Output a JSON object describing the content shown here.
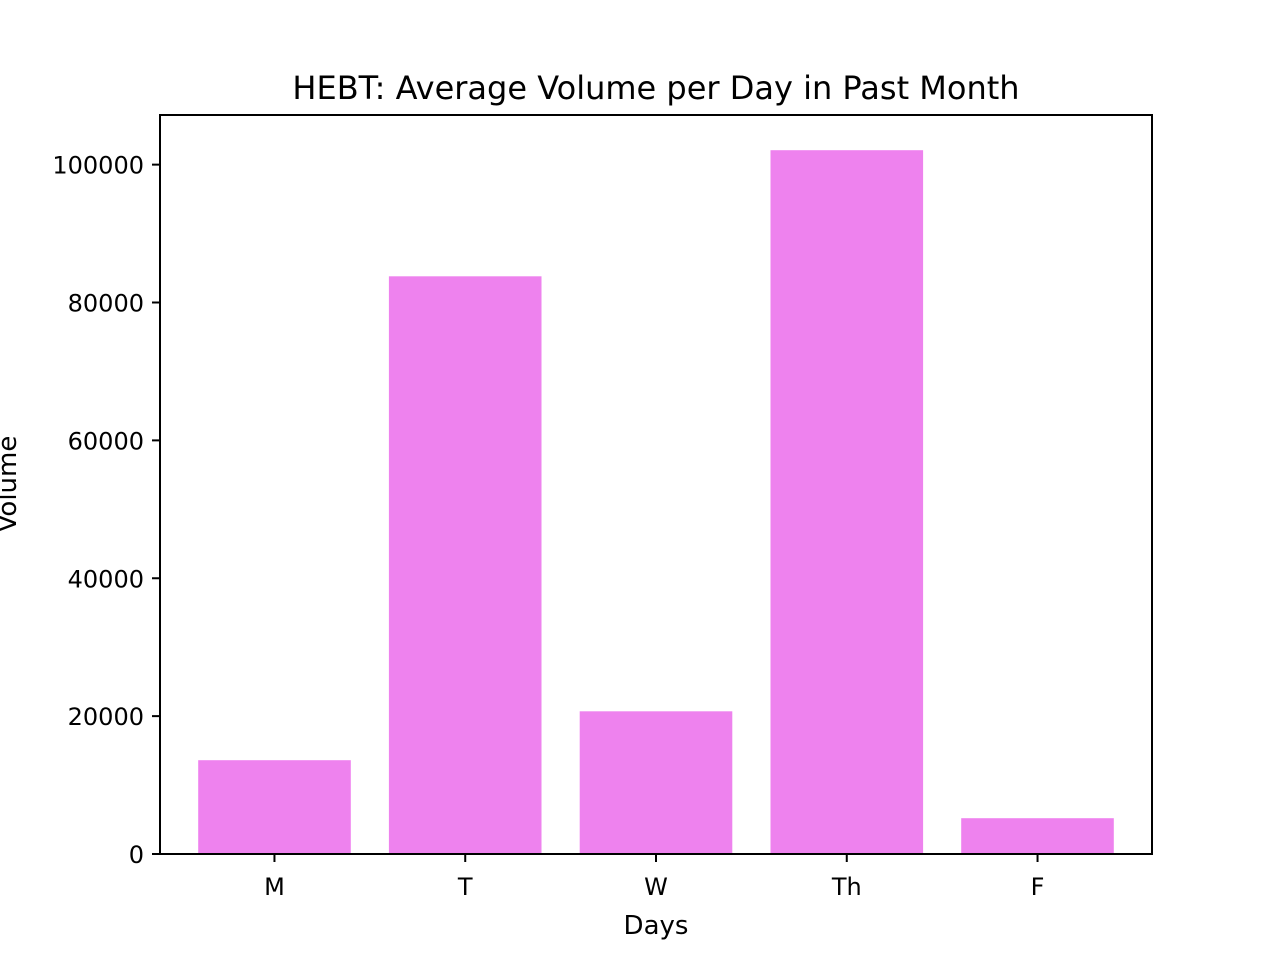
{
  "chart_data": {
    "type": "bar",
    "title": "HEBT: Average Volume per Day in Past Month",
    "xlabel": "Days",
    "ylabel": "Volume",
    "categories": [
      "M",
      "T",
      "W",
      "Th",
      "F"
    ],
    "values": [
      13600,
      83800,
      20700,
      102100,
      5200
    ],
    "ylim": [
      0,
      107200
    ],
    "yticks": [
      0,
      20000,
      40000,
      60000,
      80000,
      100000
    ],
    "ytick_labels": [
      "0",
      "20000",
      "40000",
      "60000",
      "80000",
      "100000"
    ],
    "bar_color": "#ee82ee",
    "grid": false,
    "legend": "none"
  }
}
